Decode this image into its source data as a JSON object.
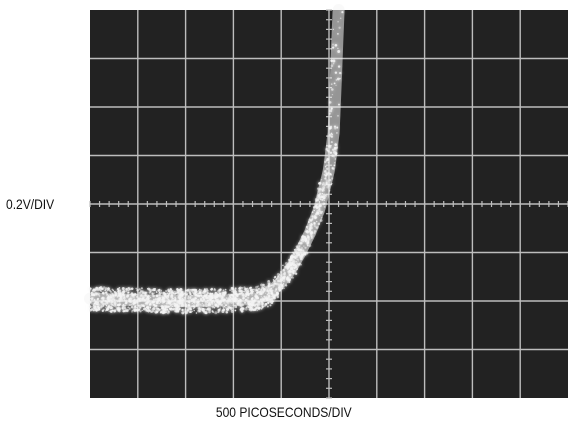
{
  "chart_data": {
    "type": "line",
    "subtype": "oscilloscope-capture",
    "title": "",
    "xlabel": "500 PICOSECONDS/DIV",
    "ylabel": "0.2V/DIV",
    "x_divisions": 10,
    "y_divisions": 8,
    "grid": true,
    "colors": {
      "screen_background": "#222222",
      "graticule": "#bdbdbd",
      "trace": "#f4f4f4"
    },
    "series": [
      {
        "x": [
          0,
          0.5,
          1.0,
          1.5,
          2.0,
          2.5,
          3.0,
          3.5,
          3.75,
          4.0,
          4.2,
          4.4,
          4.6,
          4.8,
          5.0,
          5.1,
          5.2
        ],
        "y": [
          -1.95,
          -1.97,
          -1.98,
          -2.0,
          -2.0,
          -2.0,
          -1.98,
          -1.95,
          -1.85,
          -1.6,
          -1.35,
          -1.0,
          -0.6,
          -0.1,
          0.7,
          1.5,
          4.0
        ]
      }
    ]
  }
}
